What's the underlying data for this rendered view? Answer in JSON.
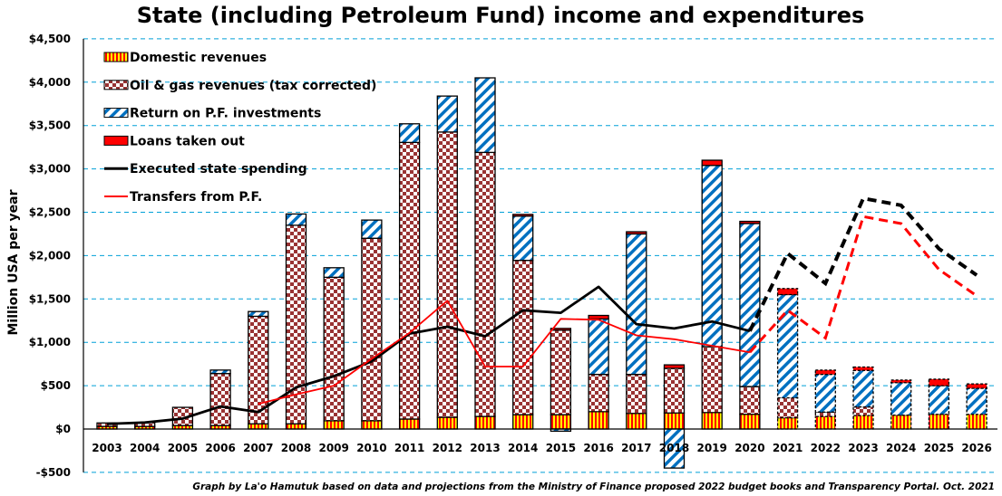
{
  "chart_data": {
    "type": "bar",
    "subtype": "stacked bar with line overlays",
    "title": "State (including Petroleum Fund) income and expenditures",
    "xlabel": "",
    "ylabel": "Million USA per year",
    "ylim": [
      -500,
      4500
    ],
    "ytick_step": 500,
    "yticks": [
      "-$500",
      "$0",
      "$500",
      "$1,000",
      "$1,500",
      "$2,000",
      "$2,500",
      "$3,000",
      "$3,500",
      "$4,000",
      "$4,500"
    ],
    "ytick_values": [
      -500,
      0,
      500,
      1000,
      1500,
      2000,
      2500,
      3000,
      3500,
      4000,
      4500
    ],
    "grid": true,
    "legend_position": "top-left",
    "categories": [
      "2003",
      "2004",
      "2005",
      "2006",
      "2007",
      "2008",
      "2009",
      "2010",
      "2011",
      "2012",
      "2013",
      "2014",
      "2015",
      "2016",
      "2017",
      "2018",
      "2019",
      "2020",
      "2021",
      "2022",
      "2023",
      "2024",
      "2025",
      "2026"
    ],
    "projection_start": "2021",
    "bar_series": [
      {
        "name": "Domestic revenues",
        "pattern": "vertical-stripes",
        "colors": [
          "#ffff00",
          "#ff0000"
        ],
        "values": [
          30,
          30,
          40,
          40,
          60,
          60,
          95,
          95,
          115,
          135,
          145,
          165,
          165,
          200,
          180,
          185,
          190,
          170,
          130,
          145,
          155,
          160,
          170,
          170
        ]
      },
      {
        "name": "Oil & gas revenues (tax corrected)",
        "pattern": "checker",
        "colors": [
          "#993333",
          "#ffffff"
        ],
        "values": [
          40,
          45,
          210,
          600,
          1240,
          2290,
          1655,
          2105,
          3190,
          3290,
          3045,
          1780,
          975,
          430,
          450,
          515,
          760,
          320,
          230,
          50,
          100,
          0,
          0,
          0
        ]
      },
      {
        "name": "Return on P.F. investments",
        "pattern": "diagonal-stripes",
        "colors": [
          "#0070c0",
          "#ffffff"
        ],
        "values": [
          0,
          0,
          0,
          40,
          55,
          130,
          110,
          210,
          215,
          415,
          860,
          510,
          -25,
          640,
          1620,
          -450,
          2090,
          1880,
          1190,
          435,
          420,
          375,
          330,
          300
        ]
      },
      {
        "name": "Loans taken out",
        "pattern": "solid",
        "colors": [
          "#ff0000"
        ],
        "values": [
          0,
          0,
          0,
          0,
          0,
          0,
          0,
          0,
          0,
          0,
          0,
          20,
          20,
          40,
          25,
          40,
          60,
          25,
          70,
          50,
          40,
          30,
          75,
          50
        ]
      }
    ],
    "line_series": [
      {
        "name": "Executed state spending",
        "color": "#000000",
        "values": [
          60,
          75,
          120,
          260,
          195,
          480,
          610,
          780,
          1100,
          1180,
          1070,
          1370,
          1340,
          1640,
          1210,
          1160,
          1240,
          1130,
          2025,
          1680,
          2660,
          2580,
          2080,
          1775
        ]
      },
      {
        "name": "Transfers from P.F.",
        "color": "#ff0000",
        "values": [
          null,
          null,
          null,
          null,
          290,
          400,
          500,
          810,
          1110,
          1480,
          720,
          720,
          1270,
          1260,
          1080,
          1035,
          960,
          885,
          1370,
          1050,
          2450,
          2370,
          1840,
          1535
        ]
      }
    ],
    "footnote": "Graph by La'o Hamutuk based on data and projections from the Ministry of Finance proposed 2022 budget books and Transparency Portal.  Oct. 2021"
  },
  "legend": [
    {
      "label": "Domestic revenues",
      "kind": "bar",
      "series": 0
    },
    {
      "label": "Oil & gas revenues (tax corrected)",
      "kind": "bar",
      "series": 1
    },
    {
      "label": "Return on P.F. investments",
      "kind": "bar",
      "series": 2
    },
    {
      "label": "Loans taken out",
      "kind": "bar",
      "series": 3
    },
    {
      "label": "Executed state spending",
      "kind": "line",
      "series": 0
    },
    {
      "label": "Transfers from P.F.",
      "kind": "line",
      "series": 1
    }
  ],
  "colors": {
    "grid": "#00a0d8",
    "axis": "#000000",
    "projection_outline": "#000000"
  }
}
